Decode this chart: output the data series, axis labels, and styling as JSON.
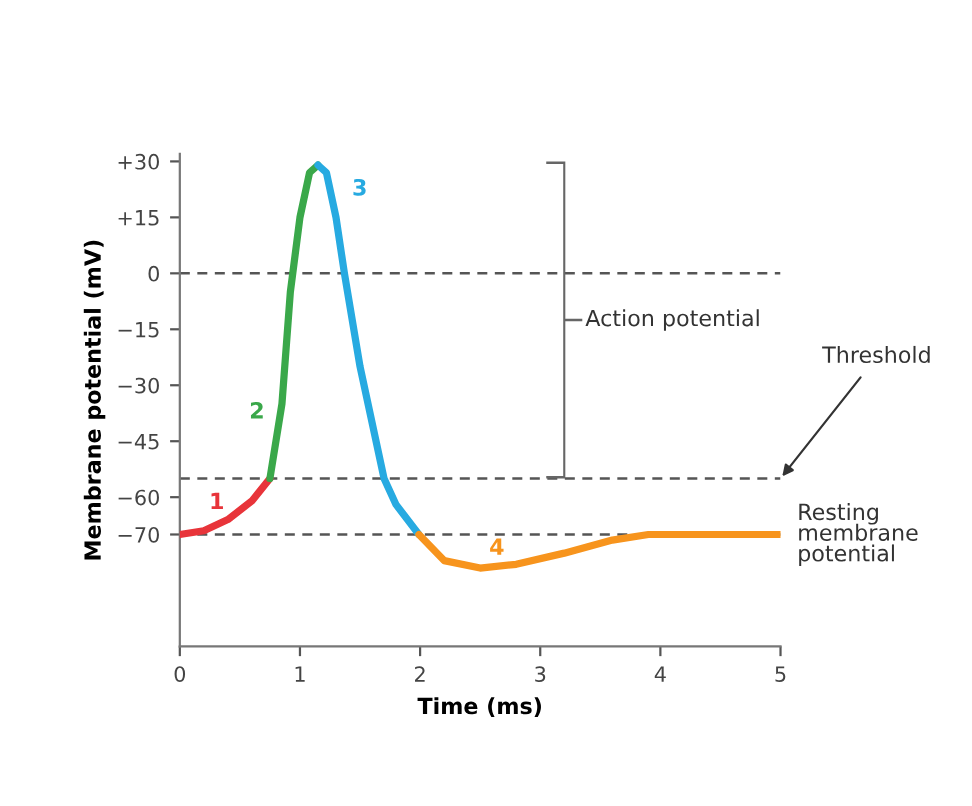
{
  "chart_data": {
    "type": "line",
    "xlabel": "Time (ms)",
    "ylabel": "Membrane potential (mV)",
    "xlim": [
      0,
      5
    ],
    "xticks": [
      0,
      1,
      2,
      3,
      4,
      5
    ],
    "ylim": [
      -100,
      32
    ],
    "yticks": [
      {
        "value": 30,
        "label": "+30"
      },
      {
        "value": 15,
        "label": "+15"
      },
      0,
      {
        "value": -15,
        "label": "−15"
      },
      {
        "value": -30,
        "label": "−30"
      },
      {
        "value": -45,
        "label": "−45"
      },
      {
        "value": -60,
        "label": "−60"
      },
      {
        "value": -70,
        "label": "−70"
      }
    ],
    "grid": false,
    "legend": false,
    "marker": "none",
    "line_style": "solid",
    "series": [
      {
        "name": "1",
        "color": "#e8343a",
        "x": [
          0,
          0.2,
          0.4,
          0.6,
          0.75
        ],
        "values": [
          -70,
          -69,
          -66,
          -61,
          -55
        ]
      },
      {
        "name": "2",
        "color": "#3aa84a",
        "x": [
          0.75,
          0.85,
          0.92,
          1.0,
          1.08,
          1.15
        ],
        "values": [
          -55,
          -35,
          -5,
          15,
          27,
          29
        ]
      },
      {
        "name": "3",
        "color": "#27aae1",
        "x": [
          1.15,
          1.22,
          1.3,
          1.37,
          1.5,
          1.7,
          1.8,
          1.99
        ],
        "values": [
          29,
          27,
          15,
          0,
          -25,
          -55,
          -62,
          -70
        ]
      },
      {
        "name": "4",
        "color": "#f7941d",
        "x": [
          1.99,
          2.2,
          2.5,
          2.8,
          3.2,
          3.6,
          3.9,
          4.5,
          5
        ],
        "values": [
          -70,
          -77,
          -79,
          -78,
          -75,
          -71.5,
          -70,
          -70,
          -70
        ]
      }
    ],
    "ref_lines": [
      {
        "axis": "y",
        "value": 0,
        "color": "#555555",
        "line_style": "dashed"
      },
      {
        "axis": "y",
        "value": -55,
        "label": "Threshold",
        "color": "#555555",
        "line_style": "dashed"
      },
      {
        "axis": "y",
        "value": -70,
        "label": "Resting\nmembrane\npotential",
        "color": "#555555",
        "line_style": "dashed"
      }
    ],
    "annotations": [
      "Action potential"
    ]
  }
}
